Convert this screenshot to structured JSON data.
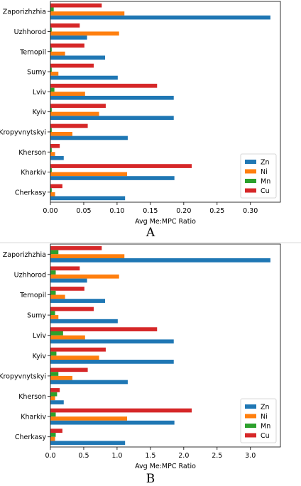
{
  "colors": {
    "Zn": "#1f77b4",
    "Ni": "#ff7f0e",
    "Mn": "#2ca02c",
    "Cu": "#d62728"
  },
  "chart_data": [
    {
      "panel_label": "A",
      "type": "bar",
      "orientation": "horizontal",
      "categories": [
        "Zaporizhzhia",
        "Uzhhorod",
        "Ternopil",
        "Sumy",
        "Lviv",
        "Kyiv",
        "Kropyvnytskyi",
        "Kherson",
        "Kharkiv",
        "Cherkasy"
      ],
      "series": [
        {
          "name": "Cu",
          "values": [
            0.077,
            0.044,
            0.051,
            0.065,
            0.16,
            0.083,
            0.056,
            0.014,
            0.212,
            0.018
          ]
        },
        {
          "name": "Mn",
          "values": [
            0.005,
            0.002,
            0.002,
            0.002,
            0.006,
            0.002,
            0.002,
            0.002,
            0.002,
            0.002
          ]
        },
        {
          "name": "Ni",
          "values": [
            0.111,
            0.103,
            0.022,
            0.012,
            0.052,
            0.073,
            0.033,
            0.007,
            0.115,
            0.007
          ]
        },
        {
          "name": "Zn",
          "values": [
            0.33,
            0.055,
            0.082,
            0.101,
            0.185,
            0.185,
            0.116,
            0.02,
            0.186,
            0.112
          ]
        }
      ],
      "xlabel": "Avg Me:MPC Ratio",
      "xlim": [
        0,
        0.345
      ],
      "xticks": [
        "0.00",
        "0.05",
        "0.10",
        "0.15",
        "0.20",
        "0.25",
        "0.30"
      ],
      "legend": [
        "Zn",
        "Ni",
        "Mn",
        "Cu"
      ],
      "legend_position": "lower-right",
      "grid": false
    },
    {
      "panel_label": "B",
      "type": "bar",
      "orientation": "horizontal",
      "categories": [
        "Zaporizhzhia",
        "Uzhhorod",
        "Ternopil",
        "Sumy",
        "Lviv",
        "Kyiv",
        "Kropyvnytskyi",
        "Kherson",
        "Kharkiv",
        "Cherkasy"
      ],
      "series": [
        {
          "name": "Cu",
          "values": [
            0.77,
            0.44,
            0.51,
            0.65,
            1.6,
            0.83,
            0.56,
            0.14,
            2.12,
            0.18
          ]
        },
        {
          "name": "Mn",
          "values": [
            0.12,
            0.08,
            0.08,
            0.07,
            0.19,
            0.09,
            0.12,
            0.1,
            0.08,
            0.08
          ]
        },
        {
          "name": "Ni",
          "values": [
            1.11,
            1.03,
            0.22,
            0.12,
            0.52,
            0.73,
            0.33,
            0.07,
            1.15,
            0.07
          ]
        },
        {
          "name": "Zn",
          "values": [
            3.3,
            0.55,
            0.82,
            1.01,
            1.85,
            1.85,
            1.16,
            0.2,
            1.86,
            1.12
          ]
        }
      ],
      "xlabel": "Avg Me:MPC Ratio",
      "xlim": [
        0,
        3.45
      ],
      "xticks": [
        "0.0",
        "0.5",
        "1.0",
        "1.5",
        "2.0",
        "2.5",
        "3.0"
      ],
      "legend": [
        "Zn",
        "Ni",
        "Mn",
        "Cu"
      ],
      "legend_position": "lower-right",
      "grid": false
    }
  ]
}
